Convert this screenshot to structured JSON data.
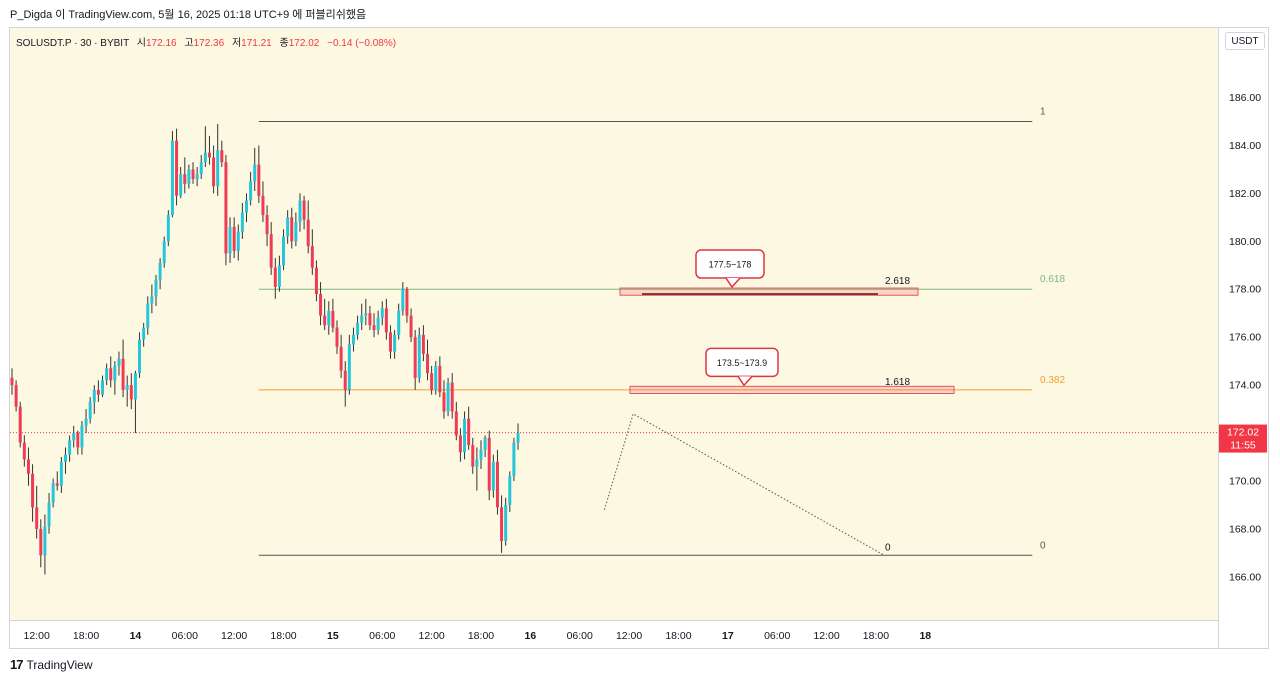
{
  "header": {
    "attribution": "P_Digda 이 TradingView.com, 5월 16, 2025 01:18 UTC+9 에 퍼블리쉬했음"
  },
  "symbol": {
    "name": "SOLUSDT.P · 30 · BYBIT",
    "open_label": "시",
    "open": "172.16",
    "high_label": "고",
    "high": "172.36",
    "low_label": "저",
    "low": "171.21",
    "close_label": "종",
    "close": "172.02",
    "change": "−0.14 (−0.08%)"
  },
  "currency": "USDT",
  "price_tag": {
    "price": "172.02",
    "countdown": "11:55"
  },
  "footer": {
    "logo": "17",
    "brand": "TradingView"
  },
  "colors": {
    "background": "#fdf8e1",
    "up": "#26c6da",
    "down": "#ef3c55",
    "fib_green": "#7fb77e",
    "fib_orange": "#f0a030",
    "fib_black": "#555555",
    "current_price": "#f23645"
  },
  "chart_data": {
    "type": "candlestick",
    "ylim": [
      164.2,
      188.9
    ],
    "y_ticks": [
      "166.00",
      "168.00",
      "170.00",
      "172.00",
      "174.00",
      "176.00",
      "178.00",
      "180.00",
      "182.00",
      "184.00",
      "186.00"
    ],
    "x_ticks": [
      {
        "label": "12:00",
        "bar": 6,
        "bold": false
      },
      {
        "label": "18:00",
        "bar": 18,
        "bold": false
      },
      {
        "label": "14",
        "bar": 30,
        "bold": true
      },
      {
        "label": "06:00",
        "bar": 42,
        "bold": false
      },
      {
        "label": "12:00",
        "bar": 54,
        "bold": false
      },
      {
        "label": "18:00",
        "bar": 66,
        "bold": false
      },
      {
        "label": "15",
        "bar": 78,
        "bold": true
      },
      {
        "label": "06:00",
        "bar": 90,
        "bold": false
      },
      {
        "label": "12:00",
        "bar": 102,
        "bold": false
      },
      {
        "label": "18:00",
        "bar": 114,
        "bold": false
      },
      {
        "label": "16",
        "bar": 126,
        "bold": true
      },
      {
        "label": "06:00",
        "bar": 138,
        "bold": false
      },
      {
        "label": "12:00",
        "bar": 150,
        "bold": false
      },
      {
        "label": "18:00",
        "bar": 162,
        "bold": false
      },
      {
        "label": "17",
        "bar": 174,
        "bold": true
      },
      {
        "label": "06:00",
        "bar": 186,
        "bold": false
      },
      {
        "label": "12:00",
        "bar": 198,
        "bold": false
      },
      {
        "label": "18:00",
        "bar": 210,
        "bold": false
      },
      {
        "label": "18",
        "bar": 222,
        "bold": true
      }
    ],
    "candles": [
      [
        174.3,
        174.7,
        173.6,
        174.0
      ],
      [
        174.0,
        174.2,
        172.9,
        173.1
      ],
      [
        173.1,
        173.3,
        171.4,
        171.6
      ],
      [
        171.6,
        171.9,
        170.6,
        170.9
      ],
      [
        170.9,
        171.4,
        169.8,
        170.3
      ],
      [
        170.3,
        170.7,
        168.3,
        168.9
      ],
      [
        168.9,
        169.8,
        167.6,
        168.0
      ],
      [
        168.0,
        168.4,
        166.4,
        166.9
      ],
      [
        166.9,
        168.6,
        166.1,
        168.1
      ],
      [
        168.1,
        169.5,
        167.8,
        169.1
      ],
      [
        169.1,
        170.1,
        168.9,
        169.9
      ],
      [
        169.9,
        170.4,
        169.6,
        169.8
      ],
      [
        169.8,
        171.0,
        169.5,
        170.8
      ],
      [
        170.8,
        171.4,
        170.3,
        171.1
      ],
      [
        171.1,
        171.9,
        170.8,
        171.7
      ],
      [
        171.7,
        172.3,
        171.4,
        172.0
      ],
      [
        172.0,
        172.1,
        171.1,
        171.4
      ],
      [
        171.4,
        172.5,
        171.1,
        172.3
      ],
      [
        172.3,
        173.0,
        172.0,
        172.6
      ],
      [
        172.6,
        173.5,
        172.4,
        173.3
      ],
      [
        173.3,
        174.0,
        172.8,
        173.8
      ],
      [
        173.8,
        174.2,
        173.3,
        173.6
      ],
      [
        173.6,
        174.4,
        173.5,
        174.2
      ],
      [
        174.2,
        174.9,
        174.0,
        174.7
      ],
      [
        174.7,
        175.2,
        173.9,
        174.2
      ],
      [
        174.2,
        175.0,
        173.6,
        174.8
      ],
      [
        174.8,
        175.4,
        174.4,
        175.1
      ],
      [
        175.1,
        175.9,
        173.5,
        173.8
      ],
      [
        173.8,
        174.4,
        173.1,
        174.0
      ],
      [
        174.0,
        174.5,
        173.0,
        173.4
      ],
      [
        173.4,
        174.6,
        172.0,
        174.5
      ],
      [
        174.5,
        176.2,
        174.3,
        175.9
      ],
      [
        175.9,
        176.6,
        175.6,
        176.4
      ],
      [
        176.4,
        177.7,
        176.1,
        177.4
      ],
      [
        177.4,
        178.2,
        177.0,
        177.7
      ],
      [
        177.7,
        178.6,
        177.3,
        178.4
      ],
      [
        178.4,
        179.3,
        178.0,
        179.1
      ],
      [
        179.1,
        180.2,
        178.9,
        180.0
      ],
      [
        180.0,
        181.3,
        179.8,
        181.1
      ],
      [
        181.1,
        184.6,
        181.0,
        184.2
      ],
      [
        184.2,
        184.7,
        181.5,
        181.9
      ],
      [
        181.9,
        183.1,
        181.8,
        182.8
      ],
      [
        182.8,
        183.5,
        182.0,
        182.4
      ],
      [
        182.4,
        183.2,
        182.2,
        183.0
      ],
      [
        183.0,
        183.3,
        182.4,
        182.6
      ],
      [
        182.6,
        183.1,
        182.3,
        182.8
      ],
      [
        182.8,
        183.6,
        182.6,
        183.3
      ],
      [
        183.3,
        184.8,
        183.1,
        183.7
      ],
      [
        183.7,
        184.4,
        183.2,
        183.5
      ],
      [
        183.5,
        184.0,
        182.0,
        182.3
      ],
      [
        182.3,
        184.9,
        181.9,
        183.8
      ],
      [
        183.8,
        184.2,
        183.1,
        183.3
      ],
      [
        183.3,
        183.6,
        179.0,
        179.5
      ],
      [
        179.5,
        181.0,
        179.1,
        180.6
      ],
      [
        180.6,
        181.0,
        179.3,
        179.6
      ],
      [
        179.6,
        180.7,
        179.2,
        180.4
      ],
      [
        180.4,
        181.6,
        180.1,
        181.2
      ],
      [
        181.2,
        182.0,
        180.8,
        181.7
      ],
      [
        181.7,
        182.9,
        181.5,
        182.5
      ],
      [
        182.5,
        183.9,
        182.1,
        183.2
      ],
      [
        183.2,
        184.0,
        181.6,
        181.9
      ],
      [
        181.9,
        182.5,
        180.8,
        181.1
      ],
      [
        181.1,
        181.5,
        179.8,
        180.3
      ],
      [
        180.3,
        180.8,
        178.6,
        178.9
      ],
      [
        178.9,
        179.3,
        177.6,
        178.1
      ],
      [
        178.1,
        179.4,
        177.9,
        179.0
      ],
      [
        179.0,
        180.5,
        178.8,
        180.2
      ],
      [
        180.2,
        181.3,
        179.9,
        181.0
      ],
      [
        181.0,
        181.4,
        179.7,
        180.0
      ],
      [
        180.0,
        181.2,
        179.8,
        180.8
      ],
      [
        180.8,
        182.0,
        180.4,
        181.7
      ],
      [
        181.7,
        181.9,
        180.5,
        180.9
      ],
      [
        180.9,
        181.7,
        179.5,
        179.8
      ],
      [
        179.8,
        180.5,
        178.6,
        178.9
      ],
      [
        178.9,
        179.2,
        177.5,
        177.8
      ],
      [
        177.8,
        178.3,
        176.5,
        176.9
      ],
      [
        176.9,
        177.6,
        176.3,
        176.5
      ],
      [
        176.5,
        177.5,
        176.1,
        177.1
      ],
      [
        177.1,
        177.6,
        176.2,
        176.4
      ],
      [
        176.4,
        176.7,
        175.3,
        175.6
      ],
      [
        175.6,
        176.1,
        174.3,
        174.6
      ],
      [
        174.6,
        175.0,
        173.1,
        173.8
      ],
      [
        173.8,
        176.1,
        173.6,
        175.7
      ],
      [
        175.7,
        176.4,
        175.4,
        176.1
      ],
      [
        176.1,
        176.9,
        175.9,
        176.6
      ],
      [
        176.6,
        177.4,
        176.3,
        176.9
      ],
      [
        176.9,
        177.6,
        176.5,
        177.0
      ],
      [
        177.0,
        177.3,
        176.3,
        176.5
      ],
      [
        176.5,
        177.0,
        176.0,
        176.3
      ],
      [
        176.3,
        177.1,
        176.1,
        176.8
      ],
      [
        176.8,
        177.5,
        176.5,
        177.2
      ],
      [
        177.2,
        177.6,
        175.9,
        176.2
      ],
      [
        176.2,
        176.5,
        175.1,
        175.4
      ],
      [
        175.4,
        176.3,
        175.1,
        176.1
      ],
      [
        176.1,
        177.4,
        175.9,
        177.1
      ],
      [
        177.1,
        178.3,
        176.9,
        178.0
      ],
      [
        178.0,
        178.1,
        176.6,
        176.9
      ],
      [
        176.9,
        177.2,
        175.8,
        176.0
      ],
      [
        176.0,
        176.3,
        173.8,
        174.3
      ],
      [
        174.3,
        176.4,
        174.1,
        176.1
      ],
      [
        176.1,
        176.5,
        175.0,
        175.3
      ],
      [
        175.3,
        175.9,
        174.2,
        174.5
      ],
      [
        174.5,
        174.8,
        173.6,
        173.8
      ],
      [
        173.8,
        175.0,
        173.6,
        174.8
      ],
      [
        174.8,
        175.2,
        173.5,
        173.7
      ],
      [
        173.7,
        174.2,
        172.6,
        172.9
      ],
      [
        172.9,
        174.3,
        172.7,
        174.1
      ],
      [
        174.1,
        174.5,
        172.6,
        172.9
      ],
      [
        172.9,
        173.3,
        171.7,
        171.9
      ],
      [
        171.9,
        172.2,
        170.8,
        171.2
      ],
      [
        171.2,
        172.9,
        170.9,
        172.6
      ],
      [
        172.6,
        173.1,
        171.3,
        171.5
      ],
      [
        171.5,
        171.8,
        170.3,
        170.6
      ],
      [
        170.6,
        171.4,
        169.6,
        170.9
      ],
      [
        170.9,
        171.7,
        170.5,
        171.3
      ],
      [
        171.3,
        171.9,
        171.0,
        171.8
      ]
    ],
    "candles_tail": [
      [
        171.8,
        172.1,
        169.2,
        169.6
      ],
      [
        169.6,
        171.1,
        169.3,
        170.8
      ],
      [
        170.8,
        171.3,
        168.6,
        168.9
      ],
      [
        168.9,
        169.4,
        167.0,
        167.5
      ],
      [
        167.5,
        169.3,
        167.3,
        169.0
      ],
      [
        169.0,
        170.4,
        168.7,
        170.2
      ],
      [
        170.2,
        171.8,
        170.0,
        171.6
      ],
      [
        171.6,
        172.4,
        171.3,
        172.0
      ]
    ],
    "fib_levels": [
      {
        "label": "1",
        "price": 185.0,
        "color": "#555555"
      },
      {
        "label": "0.618",
        "price": 178.0,
        "color": "#7fb77e"
      },
      {
        "label": "0.382",
        "price": 173.8,
        "color": "#f0a030"
      },
      {
        "label": "0",
        "price": 166.9,
        "color": "#555555"
      }
    ],
    "extension_labels": [
      {
        "label": "2.618",
        "price": 178.0
      },
      {
        "label": "1.618",
        "price": 173.8
      },
      {
        "label": "0",
        "price": 166.9
      }
    ],
    "zones": [
      {
        "label": "177.5~178",
        "low": 177.75,
        "high": 178.05
      },
      {
        "label": "173.5~173.9",
        "low": 173.65,
        "high": 173.95
      }
    ],
    "current_price": 172.02
  }
}
